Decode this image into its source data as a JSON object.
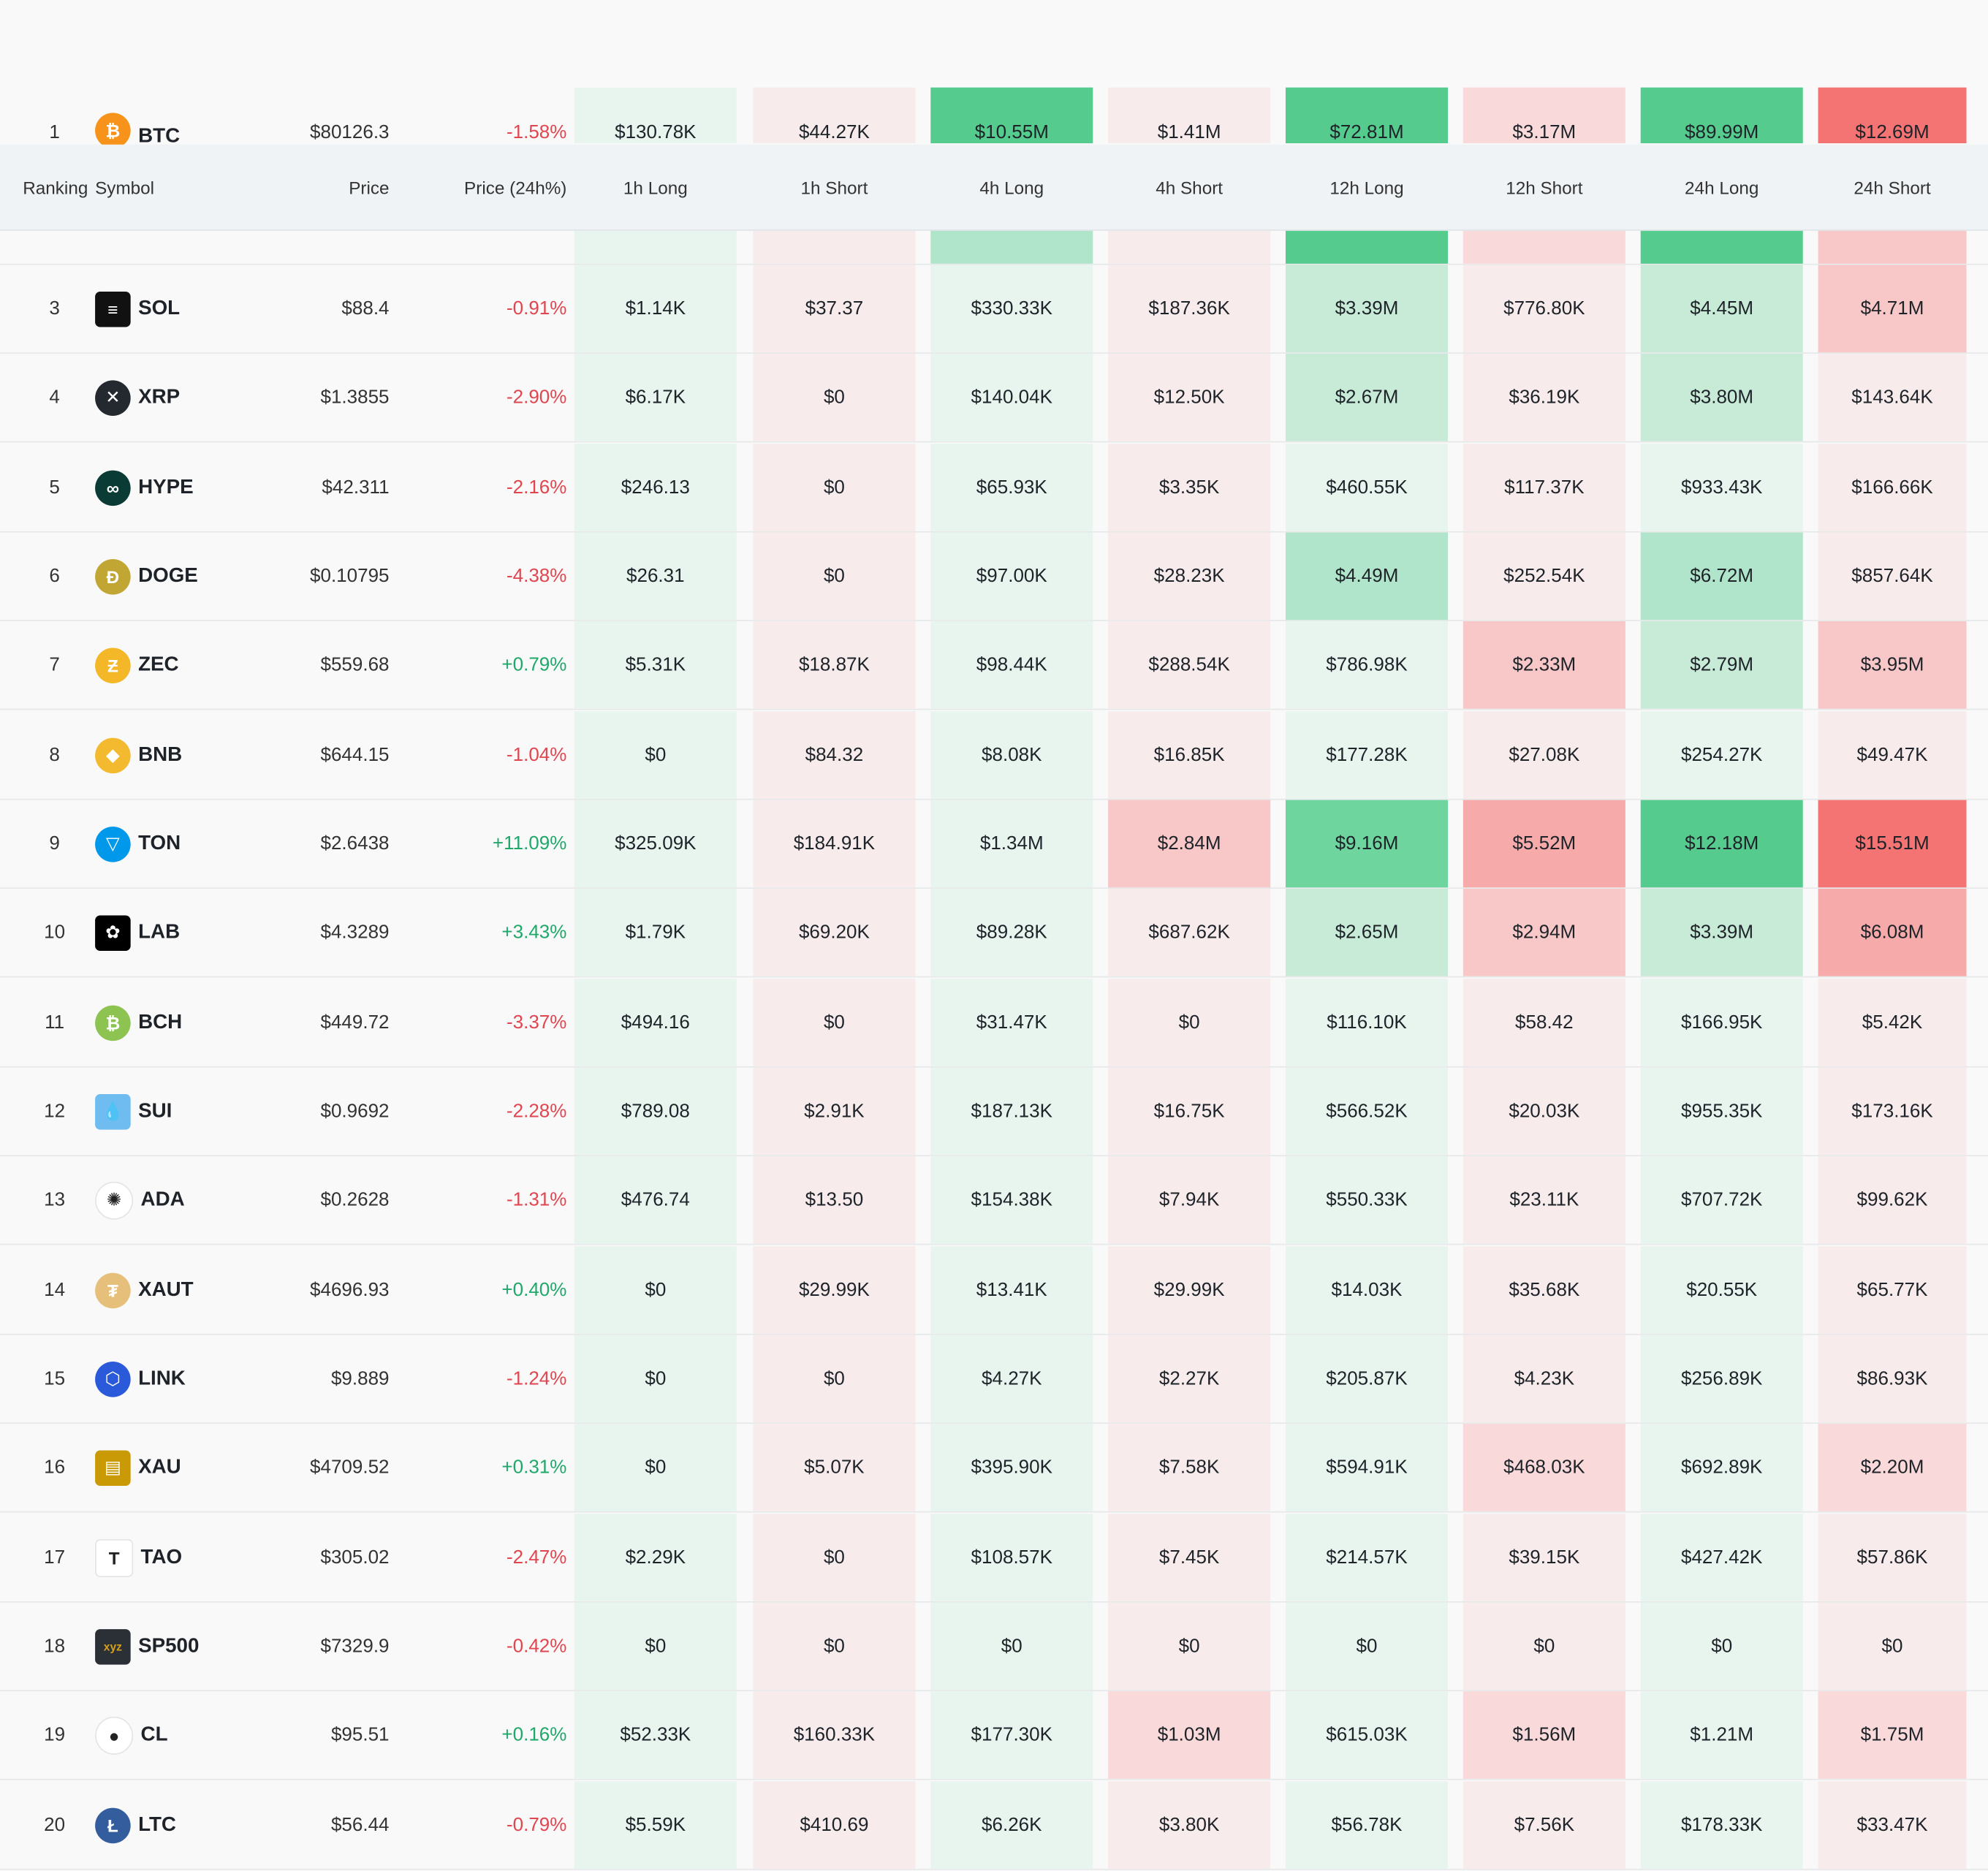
{
  "columns": {
    "ranking": "Ranking",
    "symbol": "Symbol",
    "price": "Price",
    "price_change": "Price (24h%)",
    "h1_long": "1h Long",
    "h1_short": "1h Short",
    "h4_long": "4h Long",
    "h4_short": "4h Short",
    "h12_long": "12h Long",
    "h12_short": "12h Short",
    "h24_long": "24h Long",
    "h24_short": "24h Short"
  },
  "colors": {
    "positive": "#20a86a",
    "negative": "#e0464f",
    "header_bg": "#eff3f6"
  },
  "rows": [
    {
      "rank": "1",
      "symbol": "BTC",
      "icon": "bitcoin-icon",
      "price": "$80126.3",
      "change": "-1.58%",
      "v": [
        "$130.78K",
        "$44.27K",
        "$10.55M",
        "$1.41M",
        "$72.81M",
        "$3.17M",
        "$89.99M",
        "$12.69M"
      ]
    },
    {
      "rank": "",
      "symbol": "",
      "icon": "coin-icon",
      "price": "",
      "change": "",
      "v": [
        "",
        "",
        "",
        "",
        "",
        "",
        "",
        ""
      ]
    },
    {
      "rank": "3",
      "symbol": "SOL",
      "icon": "solana-icon",
      "price": "$88.4",
      "change": "-0.91%",
      "v": [
        "$1.14K",
        "$37.37",
        "$330.33K",
        "$187.36K",
        "$3.39M",
        "$776.80K",
        "$4.45M",
        "$4.71M"
      ]
    },
    {
      "rank": "4",
      "symbol": "XRP",
      "icon": "xrp-icon",
      "price": "$1.3855",
      "change": "-2.90%",
      "v": [
        "$6.17K",
        "$0",
        "$140.04K",
        "$12.50K",
        "$2.67M",
        "$36.19K",
        "$3.80M",
        "$143.64K"
      ]
    },
    {
      "rank": "5",
      "symbol": "HYPE",
      "icon": "hyperliquid-icon",
      "price": "$42.311",
      "change": "-2.16%",
      "v": [
        "$246.13",
        "$0",
        "$65.93K",
        "$3.35K",
        "$460.55K",
        "$117.37K",
        "$933.43K",
        "$166.66K"
      ]
    },
    {
      "rank": "6",
      "symbol": "DOGE",
      "icon": "dogecoin-icon",
      "price": "$0.10795",
      "change": "-4.38%",
      "v": [
        "$26.31",
        "$0",
        "$97.00K",
        "$28.23K",
        "$4.49M",
        "$252.54K",
        "$6.72M",
        "$857.64K"
      ]
    },
    {
      "rank": "7",
      "symbol": "ZEC",
      "icon": "zcash-icon",
      "price": "$559.68",
      "change": "+0.79%",
      "v": [
        "$5.31K",
        "$18.87K",
        "$98.44K",
        "$288.54K",
        "$786.98K",
        "$2.33M",
        "$2.79M",
        "$3.95M"
      ]
    },
    {
      "rank": "8",
      "symbol": "BNB",
      "icon": "bnb-icon",
      "price": "$644.15",
      "change": "-1.04%",
      "v": [
        "$0",
        "$84.32",
        "$8.08K",
        "$16.85K",
        "$177.28K",
        "$27.08K",
        "$254.27K",
        "$49.47K"
      ]
    },
    {
      "rank": "9",
      "symbol": "TON",
      "icon": "toncoin-icon",
      "price": "$2.6438",
      "change": "+11.09%",
      "v": [
        "$325.09K",
        "$184.91K",
        "$1.34M",
        "$2.84M",
        "$9.16M",
        "$5.52M",
        "$12.18M",
        "$15.51M"
      ]
    },
    {
      "rank": "10",
      "symbol": "LAB",
      "icon": "lab-icon",
      "price": "$4.3289",
      "change": "+3.43%",
      "v": [
        "$1.79K",
        "$69.20K",
        "$89.28K",
        "$687.62K",
        "$2.65M",
        "$2.94M",
        "$3.39M",
        "$6.08M"
      ]
    },
    {
      "rank": "11",
      "symbol": "BCH",
      "icon": "bitcoin-cash-icon",
      "price": "$449.72",
      "change": "-3.37%",
      "v": [
        "$494.16",
        "$0",
        "$31.47K",
        "$0",
        "$116.10K",
        "$58.42",
        "$166.95K",
        "$5.42K"
      ]
    },
    {
      "rank": "12",
      "symbol": "SUI",
      "icon": "sui-icon",
      "price": "$0.9692",
      "change": "-2.28%",
      "v": [
        "$789.08",
        "$2.91K",
        "$187.13K",
        "$16.75K",
        "$566.52K",
        "$20.03K",
        "$955.35K",
        "$173.16K"
      ]
    },
    {
      "rank": "13",
      "symbol": "ADA",
      "icon": "cardano-icon",
      "price": "$0.2628",
      "change": "-1.31%",
      "v": [
        "$476.74",
        "$13.50",
        "$154.38K",
        "$7.94K",
        "$550.33K",
        "$23.11K",
        "$707.72K",
        "$99.62K"
      ]
    },
    {
      "rank": "14",
      "symbol": "XAUT",
      "icon": "tether-gold-icon",
      "price": "$4696.93",
      "change": "+0.40%",
      "v": [
        "$0",
        "$29.99K",
        "$13.41K",
        "$29.99K",
        "$14.03K",
        "$35.68K",
        "$20.55K",
        "$65.77K"
      ]
    },
    {
      "rank": "15",
      "symbol": "LINK",
      "icon": "chainlink-icon",
      "price": "$9.889",
      "change": "-1.24%",
      "v": [
        "$0",
        "$0",
        "$4.27K",
        "$2.27K",
        "$205.87K",
        "$4.23K",
        "$256.89K",
        "$86.93K"
      ]
    },
    {
      "rank": "16",
      "symbol": "XAU",
      "icon": "gold-bars-icon",
      "price": "$4709.52",
      "change": "+0.31%",
      "v": [
        "$0",
        "$5.07K",
        "$395.90K",
        "$7.58K",
        "$594.91K",
        "$468.03K",
        "$692.89K",
        "$2.20M"
      ]
    },
    {
      "rank": "17",
      "symbol": "TAO",
      "icon": "bittensor-icon",
      "price": "$305.02",
      "change": "-2.47%",
      "v": [
        "$2.29K",
        "$0",
        "$108.57K",
        "$7.45K",
        "$214.57K",
        "$39.15K",
        "$427.42K",
        "$57.86K"
      ]
    },
    {
      "rank": "18",
      "symbol": "SP500",
      "icon": "xyz-icon",
      "price": "$7329.9",
      "change": "-0.42%",
      "v": [
        "$0",
        "$0",
        "$0",
        "$0",
        "$0",
        "$0",
        "$0",
        "$0"
      ]
    },
    {
      "rank": "19",
      "symbol": "CL",
      "icon": "oil-drop-icon",
      "price": "$95.51",
      "change": "+0.16%",
      "v": [
        "$52.33K",
        "$160.33K",
        "$177.30K",
        "$1.03M",
        "$615.03K",
        "$1.56M",
        "$1.21M",
        "$1.75M"
      ]
    },
    {
      "rank": "20",
      "symbol": "LTC",
      "icon": "litecoin-icon",
      "price": "$56.44",
      "change": "-0.79%",
      "v": [
        "$5.59K",
        "$410.69",
        "$6.26K",
        "$3.80K",
        "$56.78K",
        "$7.56K",
        "$178.33K",
        "$33.47K"
      ]
    }
  ],
  "heat_levels": [
    [
      0,
      1,
      5,
      1,
      5,
      2,
      5,
      5
    ],
    [
      0,
      1,
      3,
      1,
      5,
      2,
      5,
      3
    ],
    [
      0,
      1,
      0,
      1,
      2,
      1,
      2,
      3
    ],
    [
      0,
      0,
      0,
      1,
      2,
      1,
      2,
      1
    ],
    [
      0,
      0,
      0,
      1,
      0,
      1,
      1,
      1
    ],
    [
      0,
      0,
      0,
      1,
      3,
      1,
      3,
      1
    ],
    [
      0,
      1,
      0,
      1,
      0,
      3,
      2,
      3
    ],
    [
      0,
      1,
      0,
      1,
      0,
      1,
      0,
      1
    ],
    [
      0,
      1,
      1,
      3,
      4,
      4,
      5,
      5
    ],
    [
      0,
      1,
      0,
      1,
      2,
      3,
      2,
      4
    ],
    [
      0,
      0,
      0,
      0,
      0,
      1,
      0,
      1
    ],
    [
      0,
      1,
      0,
      1,
      0,
      1,
      1,
      1
    ],
    [
      0,
      1,
      0,
      1,
      0,
      1,
      0,
      1
    ],
    [
      0,
      1,
      0,
      1,
      0,
      1,
      0,
      1
    ],
    [
      0,
      0,
      0,
      1,
      0,
      1,
      0,
      1
    ],
    [
      0,
      1,
      0,
      1,
      0,
      2,
      0,
      2
    ],
    [
      0,
      0,
      0,
      1,
      0,
      1,
      0,
      1
    ],
    [
      0,
      0,
      0,
      0,
      0,
      0,
      0,
      0
    ],
    [
      0,
      1,
      0,
      2,
      0,
      2,
      1,
      2
    ],
    [
      0,
      1,
      0,
      1,
      0,
      1,
      0,
      1
    ]
  ]
}
